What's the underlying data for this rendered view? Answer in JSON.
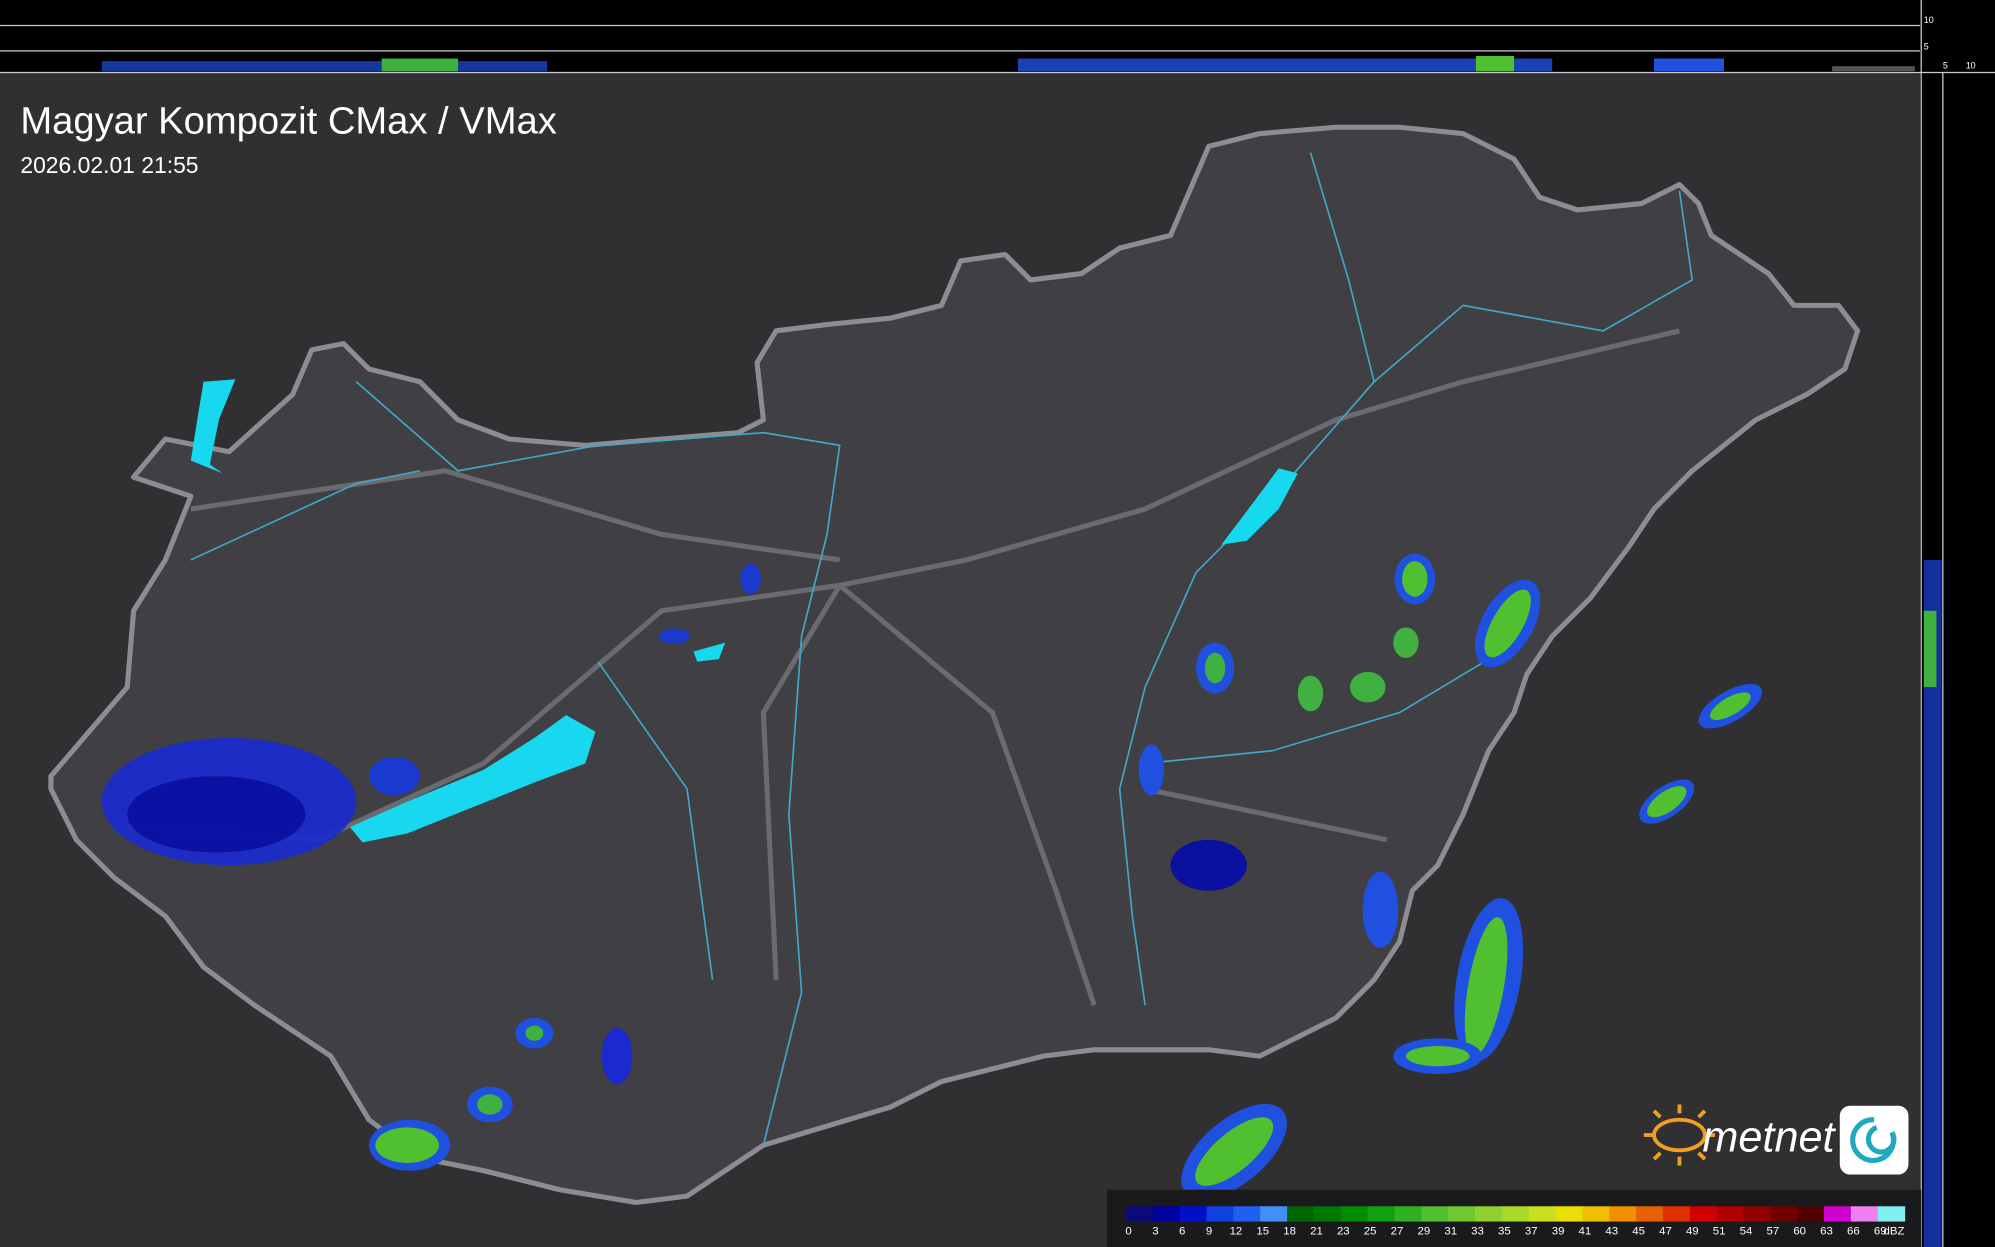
{
  "header": {
    "title": "Magyar Kompozit CMax / VMax",
    "timestamp": "2026.02.01 21:55"
  },
  "side_axis": {
    "top_labels": [
      "10",
      "5"
    ],
    "bottom_labels": [
      "5",
      "10"
    ]
  },
  "logo": {
    "text": "metnet"
  },
  "colorbar": {
    "labels": [
      "0",
      "3",
      "6",
      "9",
      "12",
      "15",
      "18",
      "21",
      "23",
      "25",
      "27",
      "29",
      "31",
      "33",
      "35",
      "37",
      "39",
      "41",
      "43",
      "45",
      "47",
      "49",
      "51",
      "54",
      "57",
      "60",
      "63",
      "66",
      "69"
    ],
    "colors": [
      "#0a0a78",
      "#0000a0",
      "#0010c8",
      "#1040e0",
      "#2060f0",
      "#4090f8",
      "#006400",
      "#007800",
      "#008c00",
      "#10a010",
      "#30b020",
      "#50c030",
      "#70c830",
      "#90d030",
      "#a8d828",
      "#c8e020",
      "#e8e000",
      "#f0c000",
      "#f09000",
      "#e86000",
      "#e03000",
      "#d00000",
      "#b00000",
      "#900000",
      "#700000",
      "#500000",
      "#d000d0",
      "#f080f0",
      "#80f0f0"
    ],
    "unit": "dBZ"
  }
}
